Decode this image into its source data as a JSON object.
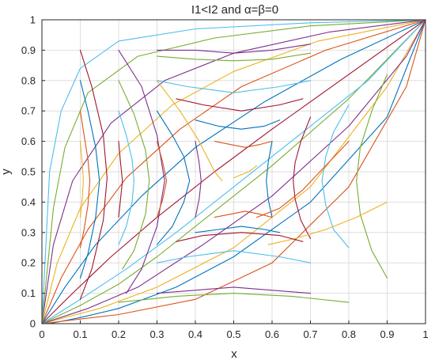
{
  "chart_data": {
    "type": "line",
    "title": "I1<I2  and  α=β=0",
    "xlabel": "x",
    "ylabel": "y",
    "xlim": [
      0,
      1
    ],
    "ylim": [
      0,
      1
    ],
    "xticks": [
      "0",
      "0.1",
      "0.2",
      "0.3",
      "0.4",
      "0.5",
      "0.6",
      "0.7",
      "0.8",
      "0.9",
      "1"
    ],
    "yticks": [
      "0",
      "0.1",
      "0.2",
      "0.3",
      "0.4",
      "0.5",
      "0.6",
      "0.7",
      "0.8",
      "0.9",
      "1"
    ],
    "grid": true,
    "colors": [
      "#0072BD",
      "#D95319",
      "#EDB120",
      "#7E2F8E",
      "#77AC30",
      "#4DBEEE",
      "#A2142F"
    ],
    "series": [
      {
        "x": [
          0.02,
          0.1,
          0.2,
          0.35,
          0.5,
          0.7,
          0.9,
          1.0
        ],
        "y": [
          0.0,
          0.02,
          0.05,
          0.12,
          0.22,
          0.4,
          0.68,
          1.0
        ]
      },
      {
        "x": [
          0.0,
          0.2,
          0.4,
          0.6,
          0.8,
          0.95,
          1.0
        ],
        "y": [
          0.0,
          0.03,
          0.08,
          0.2,
          0.45,
          0.78,
          1.0
        ]
      },
      {
        "x": [
          0.0,
          0.15,
          0.3,
          0.5,
          0.7,
          0.9,
          1.0
        ],
        "y": [
          0.0,
          0.05,
          0.12,
          0.25,
          0.45,
          0.78,
          1.0
        ]
      },
      {
        "x": [
          0.0,
          0.12,
          0.25,
          0.42,
          0.6,
          0.8,
          0.95,
          1.0
        ],
        "y": [
          0.0,
          0.05,
          0.12,
          0.26,
          0.42,
          0.65,
          0.88,
          1.0
        ]
      },
      {
        "x": [
          0.0,
          0.1,
          0.2,
          0.3,
          0.45,
          0.6,
          0.8,
          1.0
        ],
        "y": [
          0.0,
          0.06,
          0.13,
          0.22,
          0.37,
          0.52,
          0.74,
          1.0
        ]
      },
      {
        "x": [
          0.0,
          0.1,
          0.22,
          0.35,
          0.5,
          0.65,
          0.85,
          1.0
        ],
        "y": [
          0.0,
          0.08,
          0.18,
          0.3,
          0.45,
          0.6,
          0.8,
          1.0
        ]
      },
      {
        "x": [
          0.0,
          0.08,
          0.18,
          0.3,
          0.45,
          0.6,
          0.8,
          1.0
        ],
        "y": [
          0.0,
          0.1,
          0.22,
          0.35,
          0.5,
          0.64,
          0.82,
          1.0
        ]
      },
      {
        "x": [
          0.0,
          0.06,
          0.14,
          0.26,
          0.4,
          0.58,
          0.78,
          1.0
        ],
        "y": [
          0.0,
          0.12,
          0.26,
          0.42,
          0.58,
          0.73,
          0.87,
          1.0
        ]
      },
      {
        "x": [
          0.0,
          0.05,
          0.12,
          0.22,
          0.36,
          0.52,
          0.74,
          1.0
        ],
        "y": [
          0.0,
          0.15,
          0.31,
          0.48,
          0.64,
          0.78,
          0.9,
          1.0
        ]
      },
      {
        "x": [
          0.0,
          0.04,
          0.1,
          0.2,
          0.34,
          0.5,
          0.72,
          1.0
        ],
        "y": [
          0.0,
          0.2,
          0.38,
          0.56,
          0.72,
          0.83,
          0.93,
          1.0
        ]
      },
      {
        "x": [
          0.0,
          0.03,
          0.08,
          0.18,
          0.32,
          0.5,
          0.75,
          1.0
        ],
        "y": [
          0.0,
          0.26,
          0.47,
          0.66,
          0.8,
          0.89,
          0.96,
          1.0
        ]
      },
      {
        "x": [
          0.0,
          0.03,
          0.06,
          0.12,
          0.25,
          0.45,
          0.7,
          1.0
        ],
        "y": [
          0.0,
          0.38,
          0.58,
          0.76,
          0.88,
          0.94,
          0.98,
          1.0
        ]
      },
      {
        "x": [
          0.0,
          0.02,
          0.05,
          0.1,
          0.2,
          0.4,
          0.7,
          1.0
        ],
        "y": [
          0.0,
          0.5,
          0.7,
          0.84,
          0.93,
          0.97,
          0.99,
          1.0
        ]
      },
      {
        "x": [
          0.1,
          0.13,
          0.16,
          0.17,
          0.16,
          0.13,
          0.1
        ],
        "y": [
          0.9,
          0.78,
          0.62,
          0.48,
          0.34,
          0.18,
          0.08
        ]
      },
      {
        "x": [
          0.1,
          0.12,
          0.14,
          0.15,
          0.14,
          0.12,
          0.1
        ],
        "y": [
          0.8,
          0.7,
          0.58,
          0.47,
          0.35,
          0.23,
          0.15
        ]
      },
      {
        "x": [
          0.1,
          0.11,
          0.12,
          0.125,
          0.12,
          0.11,
          0.1
        ],
        "y": [
          0.7,
          0.62,
          0.54,
          0.47,
          0.39,
          0.31,
          0.25
        ]
      },
      {
        "x": [
          0.1,
          0.105,
          0.108,
          0.105,
          0.1
        ],
        "y": [
          0.6,
          0.53,
          0.47,
          0.41,
          0.35
        ]
      },
      {
        "x": [
          0.2,
          0.26,
          0.3,
          0.32,
          0.3,
          0.26,
          0.22
        ],
        "y": [
          0.9,
          0.78,
          0.62,
          0.47,
          0.32,
          0.18,
          0.1
        ]
      },
      {
        "x": [
          0.2,
          0.24,
          0.27,
          0.28,
          0.27,
          0.24,
          0.21
        ],
        "y": [
          0.8,
          0.69,
          0.57,
          0.47,
          0.36,
          0.24,
          0.18
        ]
      },
      {
        "x": [
          0.2,
          0.22,
          0.235,
          0.24,
          0.235,
          0.22,
          0.2
        ],
        "y": [
          0.7,
          0.62,
          0.54,
          0.47,
          0.4,
          0.32,
          0.26
        ]
      },
      {
        "x": [
          0.2,
          0.205,
          0.21,
          0.205,
          0.2
        ],
        "y": [
          0.6,
          0.53,
          0.47,
          0.41,
          0.35
        ]
      },
      {
        "x": [
          0.3,
          0.34,
          0.37,
          0.385,
          0.37,
          0.34,
          0.3
        ],
        "y": [
          0.7,
          0.62,
          0.55,
          0.47,
          0.4,
          0.32,
          0.26
        ]
      },
      {
        "x": [
          0.3,
          0.315,
          0.325,
          0.315,
          0.3
        ],
        "y": [
          0.6,
          0.53,
          0.47,
          0.41,
          0.35
        ]
      },
      {
        "x": [
          0.3,
          0.36,
          0.41,
          0.45,
          0.47
        ],
        "y": [
          0.8,
          0.7,
          0.6,
          0.5,
          0.47
        ]
      },
      {
        "x": [
          0.4,
          0.41,
          0.415,
          0.41,
          0.4
        ],
        "y": [
          0.6,
          0.53,
          0.47,
          0.41,
          0.35
        ]
      },
      {
        "x": [
          0.9,
          0.86,
          0.83,
          0.82,
          0.83,
          0.86,
          0.9
        ],
        "y": [
          0.82,
          0.7,
          0.58,
          0.47,
          0.36,
          0.24,
          0.15
        ]
      },
      {
        "x": [
          0.8,
          0.76,
          0.74,
          0.73,
          0.74,
          0.76,
          0.8
        ],
        "y": [
          0.72,
          0.63,
          0.55,
          0.47,
          0.39,
          0.31,
          0.25
        ]
      },
      {
        "x": [
          0.7,
          0.675,
          0.66,
          0.655,
          0.66,
          0.675,
          0.7
        ],
        "y": [
          0.68,
          0.6,
          0.53,
          0.47,
          0.41,
          0.34,
          0.28
        ]
      },
      {
        "x": [
          0.6,
          0.59,
          0.585,
          0.59,
          0.6
        ],
        "y": [
          0.6,
          0.53,
          0.47,
          0.41,
          0.35
        ]
      },
      {
        "x": [
          0.8,
          0.74,
          0.68,
          0.62,
          0.56
        ],
        "y": [
          0.6,
          0.52,
          0.44,
          0.38,
          0.35
        ]
      },
      {
        "x": [
          0.9,
          0.82,
          0.74,
          0.66,
          0.59
        ],
        "y": [
          0.4,
          0.35,
          0.31,
          0.28,
          0.26
        ]
      },
      {
        "x": [
          0.3,
          0.4,
          0.5,
          0.6,
          0.7
        ],
        "y": [
          0.9,
          0.9,
          0.89,
          0.9,
          0.92
        ]
      },
      {
        "x": [
          0.3,
          0.4,
          0.5,
          0.6,
          0.7
        ],
        "y": [
          0.88,
          0.87,
          0.865,
          0.87,
          0.89
        ]
      },
      {
        "x": [
          0.3,
          0.38,
          0.5,
          0.62,
          0.7
        ],
        "y": [
          0.8,
          0.78,
          0.76,
          0.78,
          0.8
        ]
      },
      {
        "x": [
          0.35,
          0.42,
          0.52,
          0.62,
          0.68
        ],
        "y": [
          0.74,
          0.72,
          0.7,
          0.72,
          0.74
        ]
      },
      {
        "x": [
          0.4,
          0.46,
          0.52,
          0.58,
          0.62
        ],
        "y": [
          0.67,
          0.65,
          0.64,
          0.65,
          0.67
        ]
      },
      {
        "x": [
          0.45,
          0.49,
          0.53,
          0.57,
          0.6
        ],
        "y": [
          0.6,
          0.59,
          0.58,
          0.59,
          0.6
        ]
      },
      {
        "x": [
          0.5,
          0.52,
          0.54,
          0.56
        ],
        "y": [
          0.48,
          0.49,
          0.5,
          0.52
        ]
      },
      {
        "x": [
          0.3,
          0.4,
          0.5,
          0.6,
          0.7
        ],
        "y": [
          0.1,
          0.11,
          0.12,
          0.11,
          0.1
        ]
      },
      {
        "x": [
          0.2,
          0.35,
          0.5,
          0.65,
          0.8
        ],
        "y": [
          0.07,
          0.09,
          0.1,
          0.09,
          0.07
        ]
      },
      {
        "x": [
          0.3,
          0.38,
          0.5,
          0.62,
          0.7
        ],
        "y": [
          0.2,
          0.22,
          0.24,
          0.22,
          0.2
        ]
      },
      {
        "x": [
          0.35,
          0.42,
          0.52,
          0.62,
          0.68
        ],
        "y": [
          0.27,
          0.29,
          0.3,
          0.29,
          0.27
        ]
      },
      {
        "x": [
          0.4,
          0.46,
          0.52,
          0.58,
          0.62
        ],
        "y": [
          0.3,
          0.31,
          0.32,
          0.31,
          0.3
        ]
      },
      {
        "x": [
          0.45,
          0.49,
          0.53,
          0.57,
          0.6
        ],
        "y": [
          0.35,
          0.36,
          0.37,
          0.36,
          0.35
        ]
      }
    ]
  }
}
